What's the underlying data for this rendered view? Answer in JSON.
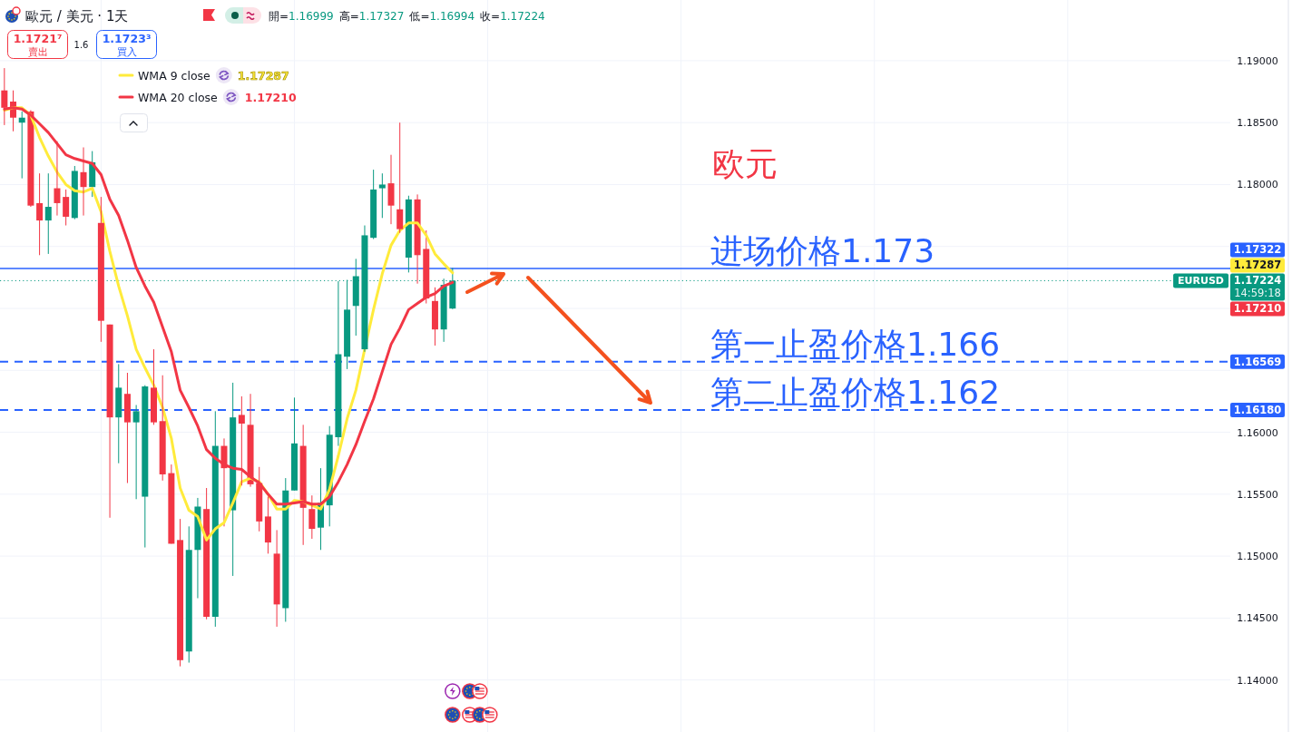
{
  "chart_data": {
    "type": "candlestick",
    "title": "歐元 / 美元 · 1天",
    "categories": [
      null,
      null,
      null,
      null,
      null,
      null,
      null,
      null,
      null,
      null,
      null,
      null,
      null,
      null,
      null,
      null,
      null,
      null,
      null,
      null,
      null,
      null,
      null,
      null,
      null,
      null,
      null,
      null,
      null,
      null,
      null,
      null,
      null,
      null,
      null,
      null,
      null,
      null,
      null,
      null,
      null,
      null,
      null,
      null,
      null,
      null,
      null,
      null,
      null,
      null,
      null,
      null,
      null,
      null,
      null,
      null,
      null,
      null,
      null,
      null,
      null,
      null,
      null,
      null,
      null,
      null,
      null,
      null,
      null,
      null,
      null,
      null,
      null,
      null,
      null,
      null,
      null,
      null,
      null,
      null,
      null,
      null,
      null,
      null,
      null,
      null,
      null,
      null,
      null,
      null,
      null,
      null,
      null,
      null,
      null,
      null,
      null,
      null,
      null,
      null,
      null,
      null,
      null,
      null,
      null,
      null,
      null,
      null,
      null,
      null,
      null,
      null,
      null,
      null,
      null,
      null,
      null,
      null,
      null,
      null,
      null,
      null,
      null,
      null,
      null,
      null,
      null,
      null,
      null,
      null,
      null,
      null,
      null,
      null,
      null,
      null,
      null,
      null,
      null,
      null
    ],
    "ohlc": [
      [
        1.1876,
        1.1894,
        1.1848,
        1.1862
      ],
      [
        1.1867,
        1.1876,
        1.1843,
        1.1854
      ],
      [
        1.185,
        1.1859,
        1.1805,
        1.1854
      ],
      [
        1.1859,
        1.186,
        1.1782,
        1.1783
      ],
      [
        1.1785,
        1.1809,
        1.1743,
        1.1771
      ],
      [
        1.1771,
        1.1809,
        1.1744,
        1.1782
      ],
      [
        1.1797,
        1.1835,
        1.1775,
        1.1785
      ],
      [
        1.179,
        1.1796,
        1.1767,
        1.1774
      ],
      [
        1.1773,
        1.1815,
        1.1772,
        1.1811
      ],
      [
        1.181,
        1.183,
        1.1775,
        1.1798
      ],
      [
        1.1798,
        1.1827,
        1.179,
        1.1818
      ],
      [
        1.1769,
        1.179,
        1.1673,
        1.169
      ],
      [
        1.1687,
        1.1687,
        1.1531,
        1.1612
      ],
      [
        1.1612,
        1.1655,
        1.1575,
        1.1636
      ],
      [
        1.1631,
        1.1648,
        1.1559,
        1.1608
      ],
      [
        1.1608,
        1.1622,
        1.1546,
        1.1617
      ],
      [
        1.1548,
        1.1638,
        1.1507,
        1.1637
      ],
      [
        1.1636,
        1.1667,
        1.1606,
        1.1608
      ],
      [
        1.1609,
        1.1646,
        1.1561,
        1.1566
      ],
      [
        1.1567,
        1.1574,
        1.151,
        1.151
      ],
      [
        1.1513,
        1.153,
        1.1411,
        1.1416
      ],
      [
        1.1423,
        1.1524,
        1.1414,
        1.1505
      ],
      [
        1.1505,
        1.1547,
        1.1466,
        1.154
      ],
      [
        1.1538,
        1.1555,
        1.1449,
        1.1451
      ],
      [
        1.1451,
        1.1617,
        1.1443,
        1.1589
      ],
      [
        1.1589,
        1.1595,
        1.1524,
        1.1571
      ],
      [
        1.1537,
        1.164,
        1.1484,
        1.1612
      ],
      [
        1.1614,
        1.1629,
        1.1557,
        1.1607
      ],
      [
        1.1606,
        1.1631,
        1.1556,
        1.1558
      ],
      [
        1.1559,
        1.1572,
        1.152,
        1.1528
      ],
      [
        1.1532,
        1.1548,
        1.1502,
        1.1511
      ],
      [
        1.1502,
        1.1521,
        1.1443,
        1.1461
      ],
      [
        1.1458,
        1.1563,
        1.1447,
        1.1553
      ],
      [
        1.1553,
        1.1628,
        1.1553,
        1.1591
      ],
      [
        1.1589,
        1.1606,
        1.1509,
        1.1539
      ],
      [
        1.1538,
        1.1549,
        1.1514,
        1.1522
      ],
      [
        1.1523,
        1.1571,
        1.1505,
        1.1543
      ],
      [
        1.1541,
        1.1605,
        1.1524,
        1.1598
      ],
      [
        1.1596,
        1.1722,
        1.1589,
        1.1663
      ],
      [
        1.1661,
        1.1723,
        1.1651,
        1.1699
      ],
      [
        1.1702,
        1.174,
        1.1678,
        1.1726
      ],
      [
        1.1667,
        1.1767,
        1.1665,
        1.1759
      ],
      [
        1.1757,
        1.1812,
        1.1756,
        1.1796
      ],
      [
        1.1797,
        1.1809,
        1.1773,
        1.18
      ],
      [
        1.1801,
        1.1824,
        1.1768,
        1.1783
      ],
      [
        1.178,
        1.185,
        1.1761,
        1.1764
      ],
      [
        1.1741,
        1.1791,
        1.1729,
        1.1788
      ],
      [
        1.1788,
        1.1792,
        1.172,
        1.1743
      ],
      [
        1.1748,
        1.1763,
        1.1704,
        1.1708
      ],
      [
        1.1706,
        1.1717,
        1.167,
        1.1683
      ],
      [
        1.1683,
        1.1724,
        1.1673,
        1.1719
      ],
      [
        1.16999,
        1.17327,
        1.16994,
        1.17224
      ],
      null,
      null,
      null,
      null,
      null,
      null,
      null,
      null,
      null,
      null,
      null,
      null,
      null,
      null,
      null,
      null,
      null,
      null,
      null,
      null,
      null,
      null,
      null,
      null,
      null,
      null,
      null,
      null,
      null,
      null,
      null,
      null,
      null,
      null,
      null,
      null,
      null,
      null,
      null,
      null,
      null,
      null,
      null,
      null,
      null,
      null,
      null,
      null,
      null,
      null,
      null,
      null,
      null,
      null,
      null,
      null,
      null,
      null,
      null,
      null,
      null,
      null,
      null,
      null,
      null,
      null,
      null,
      null,
      null,
      null,
      null,
      null,
      null,
      null,
      null,
      null,
      null,
      null,
      null,
      null,
      null,
      null,
      null,
      null,
      null,
      null,
      null,
      null
    ],
    "colors": [
      "#f23645",
      "#f23645",
      "#089981",
      "#f23645",
      "#f23645",
      "#089981",
      "#f23645",
      "#f23645",
      "#089981",
      "#f23645",
      "#089981",
      "#f23645",
      "#f23645",
      "#089981",
      "#f23645",
      "#089981",
      "#089981",
      "#f23645",
      "#f23645",
      "#f23645",
      "#f23645",
      "#089981",
      "#089981",
      "#f23645",
      "#089981",
      "#f23645",
      "#089981",
      "#f23645",
      "#f23645",
      "#f23645",
      "#f23645",
      "#f23645",
      "#089981",
      "#089981",
      "#f23645",
      "#f23645",
      "#089981",
      "#089981",
      "#089981",
      "#089981",
      "#089981",
      "#089981",
      "#089981",
      "#089981",
      "#f23645",
      "#f23645",
      "#089981",
      "#f23645",
      "#f23645",
      "#f23645",
      "#089981",
      "#089981",
      null,
      null,
      null,
      null,
      null,
      null,
      null,
      null,
      null,
      null,
      null,
      null,
      null,
      null,
      null,
      null,
      null,
      null,
      null,
      null,
      null,
      null,
      null,
      null,
      null,
      null,
      null,
      null,
      null,
      null,
      null,
      null,
      null,
      null,
      null,
      null,
      null,
      null,
      null,
      null,
      null,
      null,
      null,
      null,
      null,
      null,
      null,
      null,
      null,
      null,
      null,
      null,
      null,
      null,
      null,
      null,
      null,
      null,
      null,
      null,
      null,
      null,
      null,
      null,
      null,
      null,
      null,
      null,
      null,
      null,
      null,
      null,
      null,
      null,
      null,
      null,
      null,
      null,
      null,
      null,
      null,
      null,
      null,
      null,
      null,
      null,
      null,
      null
    ],
    "series": [
      {
        "name": "WMA 9 close",
        "type": "line",
        "color": "#ffeb3b",
        "values": [
          1.186,
          1.1862,
          1.1862,
          1.1856,
          1.1838,
          1.1823,
          1.181,
          1.18,
          1.1795,
          1.1794,
          1.1797,
          1.1778,
          1.1746,
          1.1718,
          1.1694,
          1.1667,
          1.1652,
          1.1638,
          1.162,
          1.1595,
          1.1555,
          1.1537,
          1.1532,
          1.1513,
          1.1522,
          1.1527,
          1.1543,
          1.156,
          1.1563,
          1.156,
          1.155,
          1.1538,
          1.1538,
          1.1545,
          1.1544,
          1.1541,
          1.1538,
          1.1554,
          1.1581,
          1.1611,
          1.1634,
          1.1667,
          1.1699,
          1.1728,
          1.1751,
          1.1763,
          1.1769,
          1.1769,
          1.1759,
          1.1744,
          1.1736,
          1.17287,
          null,
          null,
          null,
          null,
          null,
          null,
          null,
          null,
          null,
          null,
          null,
          null,
          null,
          null,
          null,
          null,
          null,
          null,
          null,
          null,
          null,
          null,
          null,
          null,
          null,
          null,
          null,
          null,
          null,
          null,
          null,
          null,
          null,
          null,
          null,
          null,
          null,
          null,
          null,
          null,
          null,
          null,
          null,
          null,
          null,
          null,
          null,
          null,
          null,
          null,
          null,
          null,
          null,
          null,
          null,
          null,
          null,
          null,
          null,
          null,
          null,
          null,
          null,
          null,
          null,
          null,
          null,
          null,
          null,
          null,
          null,
          null,
          null,
          null,
          null,
          null,
          null,
          null,
          null,
          null,
          null,
          null,
          null,
          null,
          null,
          null,
          null,
          null
        ]
      },
      {
        "name": "WMA 20 close",
        "type": "line",
        "color": "#f23645",
        "values": [
          1.1861,
          1.1862,
          1.1861,
          1.1856,
          1.1849,
          1.1842,
          1.1833,
          1.1824,
          1.1821,
          1.1819,
          1.1817,
          1.1808,
          1.1788,
          1.1775,
          1.1755,
          1.1733,
          1.1718,
          1.1705,
          1.1685,
          1.1665,
          1.1634,
          1.162,
          1.1605,
          1.1586,
          1.1579,
          1.1574,
          1.1571,
          1.157,
          1.1564,
          1.1559,
          1.155,
          1.1542,
          1.1542,
          1.1543,
          1.1544,
          1.1542,
          1.1542,
          1.1548,
          1.156,
          1.1574,
          1.159,
          1.1609,
          1.1627,
          1.1649,
          1.1671,
          1.1684,
          1.1699,
          1.1704,
          1.1709,
          1.1712,
          1.1718,
          1.1721,
          null,
          null,
          null,
          null,
          null,
          null,
          null,
          null,
          null,
          null,
          null,
          null,
          null,
          null,
          null,
          null,
          null,
          null,
          null,
          null,
          null,
          null,
          null,
          null,
          null,
          null,
          null,
          null,
          null,
          null,
          null,
          null,
          null,
          null,
          null,
          null,
          null,
          null,
          null,
          null,
          null,
          null,
          null,
          null,
          null,
          null,
          null,
          null,
          null,
          null,
          null,
          null,
          null,
          null,
          null,
          null,
          null,
          null,
          null,
          null,
          null,
          null,
          null,
          null,
          null,
          null,
          null,
          null,
          null,
          null,
          null,
          null,
          null,
          null,
          null,
          null,
          null,
          null,
          null,
          null,
          null,
          null,
          null,
          null,
          null,
          null,
          null,
          null
        ]
      }
    ],
    "ylim": [
      1.1358,
      1.1949
    ],
    "yticks": [
      {
        "value": 1.14,
        "label": "1.14000"
      },
      {
        "value": 1.145,
        "label": "1.14500"
      },
      {
        "value": 1.15,
        "label": "1.15000"
      },
      {
        "value": 1.155,
        "label": "1.15500"
      },
      {
        "value": 1.16,
        "label": "1.16000"
      },
      {
        "value": 1.165,
        "label": null
      },
      {
        "value": 1.17,
        "label": null
      },
      {
        "value": 1.175,
        "label": null
      },
      {
        "value": 1.18,
        "label": "1.18000"
      },
      {
        "value": 1.185,
        "label": "1.18500"
      },
      {
        "value": 1.19,
        "label": "1.19000"
      }
    ],
    "tick_labels": "y",
    "grid": true,
    "legend": "top left",
    "ref_lines": [
      {
        "axis": "y",
        "value": 1.17322,
        "label": "1.17322",
        "color": "#2962ff",
        "line_style": "solid"
      },
      {
        "axis": "y",
        "value": 1.16569,
        "label": "1.16569",
        "color": "#2962ff",
        "line_style": "dashed"
      },
      {
        "axis": "y",
        "value": 1.1618,
        "label": "1.16180",
        "color": "#2962ff",
        "line_style": "dashed"
      },
      {
        "axis": "y",
        "value": 1.17224,
        "label": "1.17224",
        "color": "#089981",
        "line_style": "dotted"
      }
    ],
    "annotations": [
      "1.1721⁷",
      "賣出",
      "1.6",
      "1.1723³",
      "買入",
      "開=1.16999",
      "高=1.17327",
      "低=1.16994",
      "收=1.17224",
      "欧元",
      {
        "text": "进场价格1.173",
        "y": 1.17322
      },
      {
        "text": "第一止盈价格1.166",
        "y": 1.16569
      },
      {
        "text": "第二止盈价格1.162",
        "y": 1.1618
      },
      {
        "text": "EURUSD",
        "y": 1.17224
      },
      "14:59:18",
      "1.17287",
      "1.17210"
    ]
  }
}
